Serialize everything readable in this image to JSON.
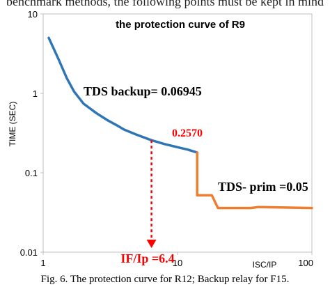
{
  "top_text": "benchmark methods, the following points must be kept in mind",
  "caption": "Fig. 6. The protection curve for R12; Backup relay for F15.",
  "chart_data": {
    "type": "line",
    "title": "the protection curve of R9",
    "xlabel": "ISC/IP",
    "ylabel": "TIME (SEC)",
    "x_scale": "log",
    "y_scale": "log",
    "xlim": [
      1,
      100
    ],
    "ylim": [
      0.01,
      10
    ],
    "x_ticks": [
      {
        "value": 1,
        "label": "1"
      },
      {
        "value": 10,
        "label": "10"
      },
      {
        "value": 100,
        "label": "100"
      }
    ],
    "y_ticks": [
      {
        "value": 10,
        "label": "10"
      },
      {
        "value": 1,
        "label": "1"
      },
      {
        "value": 0.1,
        "label": "0.1"
      },
      {
        "value": 0.01,
        "label": "0.01"
      }
    ],
    "grid": false,
    "series": [
      {
        "color": "#2e75b6",
        "x": [
          1.1,
          1.3,
          1.5,
          1.7,
          2.0,
          2.5,
          3.0,
          3.5,
          4.0,
          5.0,
          6.4,
          8.0,
          10.0,
          12.0,
          14.0
        ],
        "y": [
          5.0,
          2.7,
          1.55,
          1.05,
          0.74,
          0.56,
          0.46,
          0.4,
          0.35,
          0.3,
          0.257,
          0.23,
          0.21,
          0.195,
          0.18
        ]
      },
      {
        "color": "#ed7d31",
        "x": [
          14.0,
          14.0,
          18.0,
          20.0,
          35.0,
          40.0,
          100.0
        ],
        "y": [
          0.18,
          0.052,
          0.052,
          0.036,
          0.036,
          0.037,
          0.036
        ]
      }
    ],
    "annotations": {
      "backup_label": "TDS backup= 0.06945",
      "primary_label": "TDS- prim =0.05",
      "point_value": "0.2570",
      "point_x": 6.4,
      "point_y": 0.257,
      "x_marker_label": "IF/Ip =6.4",
      "marker_color": "#ff0000"
    }
  }
}
